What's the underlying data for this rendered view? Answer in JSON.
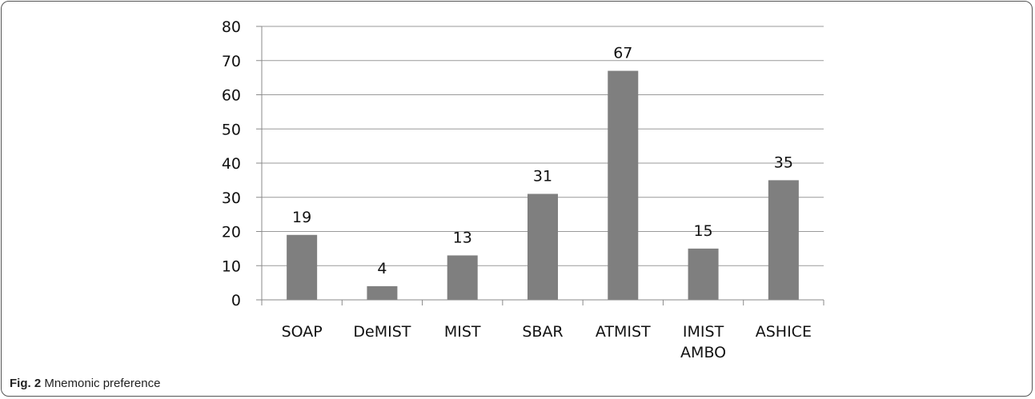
{
  "caption": {
    "label": "Fig. 2",
    "text": "Mnemonic preference"
  },
  "colors": {
    "bar": "#7f7f7f",
    "grid": "#9a9a9a",
    "axis": "#8a8a8a",
    "frame": "#555555"
  },
  "chart_data": {
    "type": "bar",
    "title": "",
    "xlabel": "",
    "ylabel": "",
    "categories": [
      [
        "SOAP"
      ],
      [
        "DeMIST"
      ],
      [
        "MIST"
      ],
      [
        "SBAR"
      ],
      [
        "ATMIST"
      ],
      [
        "IMIST",
        "AMBO"
      ],
      [
        "ASHICE"
      ]
    ],
    "values": [
      19,
      4,
      13,
      31,
      67,
      15,
      35
    ],
    "ylim": [
      0,
      80
    ],
    "yticks": [
      0,
      10,
      20,
      30,
      40,
      50,
      60,
      70,
      80
    ],
    "grid": true,
    "data_labels": true,
    "legend": "none"
  }
}
